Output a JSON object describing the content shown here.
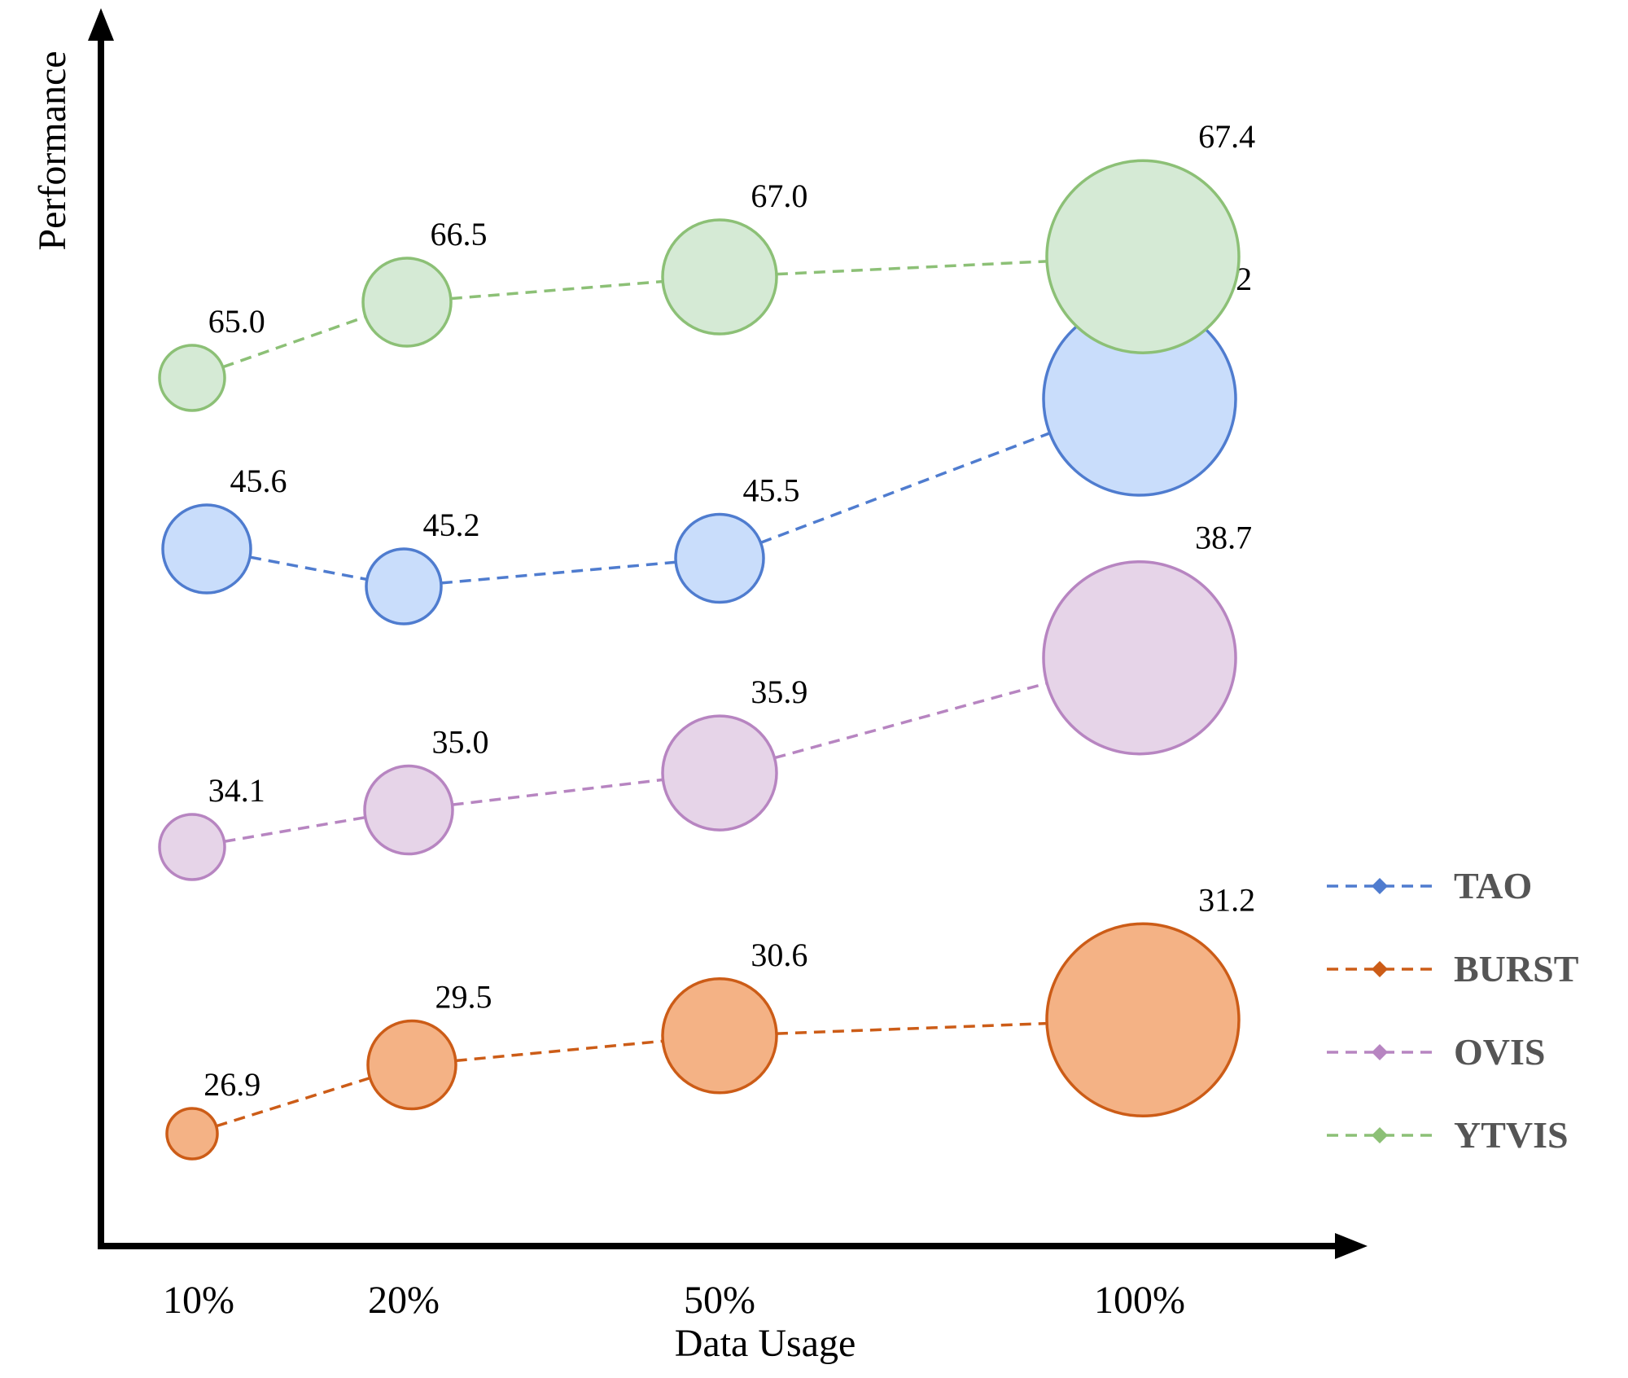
{
  "chart_data": {
    "type": "bubble",
    "xlabel": "Data Usage",
    "ylabel": "Performance",
    "categories": [
      "10%",
      "20%",
      "50%",
      "100%"
    ],
    "grid": false,
    "legend_position": "right",
    "series": [
      {
        "name": "TAO",
        "color": "#4f7ccf",
        "fill": "#c9ddfb",
        "values": [
          45.6,
          45.2,
          45.5,
          47.2
        ],
        "labels": [
          "45.6",
          "45.2",
          "45.5",
          "47.2"
        ]
      },
      {
        "name": "BURST",
        "color": "#cc5c17",
        "fill": "#f4b285",
        "values": [
          26.9,
          29.5,
          30.6,
          31.2
        ],
        "labels": [
          "26.9",
          "29.5",
          "30.6",
          "31.2"
        ]
      },
      {
        "name": "OVIS",
        "color": "#b785c1",
        "fill": "#e6d4e8",
        "values": [
          34.1,
          35.0,
          35.9,
          38.7
        ],
        "labels": [
          "34.1",
          "35.0",
          "35.9",
          "38.7"
        ]
      },
      {
        "name": "YTVIS",
        "color": "#8cc076",
        "fill": "#d5ead5",
        "values": [
          65.0,
          66.5,
          67.0,
          67.4
        ],
        "labels": [
          "65.0",
          "66.5",
          "67.0",
          "67.4"
        ]
      }
    ]
  }
}
